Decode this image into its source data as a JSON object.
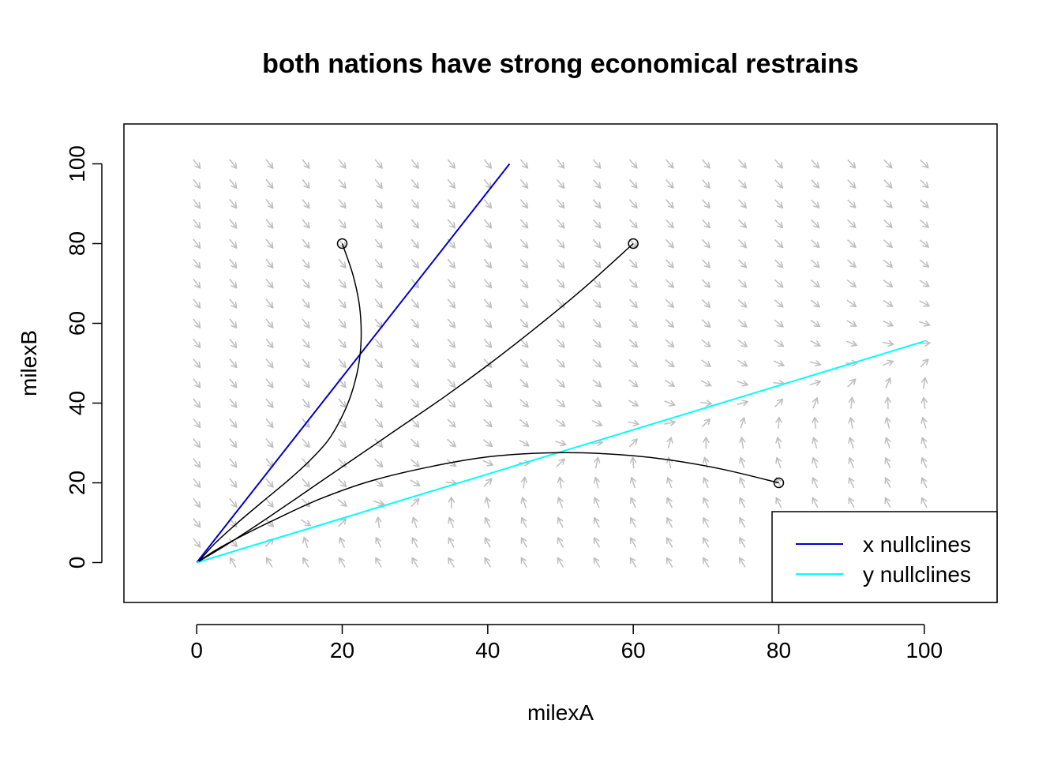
{
  "chart_data": {
    "type": "line",
    "title": "both nations have strong economical restrains",
    "xlabel": "milexA",
    "ylabel": "milexB",
    "xlim": [
      -10,
      110
    ],
    "ylim": [
      -10,
      110
    ],
    "x_ticks": [
      0,
      20,
      40,
      60,
      80,
      100
    ],
    "y_ticks": [
      0,
      20,
      40,
      60,
      80,
      100
    ],
    "grid": false,
    "legend_position": "bottom-right",
    "colors": {
      "x_nullcline": "#0000cd",
      "y_nullcline": "#00ffff",
      "trajectory": "#000000",
      "vector_field": "#bebebe"
    },
    "series": [
      {
        "name": "x nullclines",
        "x": [
          0,
          43
        ],
        "y": [
          0,
          100
        ]
      },
      {
        "name": "y nullclines",
        "x": [
          0,
          100
        ],
        "y": [
          0,
          55.5
        ]
      }
    ],
    "trajectories": [
      {
        "start": [
          20,
          80
        ],
        "x": [
          20,
          21.5,
          22.4,
          22.6,
          22.2,
          21.2,
          19.8,
          18,
          15.5,
          12.5,
          9,
          5.5,
          2.5,
          0.3
        ],
        "y": [
          80,
          72,
          64,
          56,
          49,
          42,
          36,
          30.5,
          25.5,
          20.5,
          15.2,
          9.8,
          4.8,
          0.3
        ]
      },
      {
        "start": [
          60,
          80
        ],
        "x": [
          60,
          53,
          46,
          40,
          34,
          28,
          22,
          16,
          10,
          5,
          0.3
        ],
        "y": [
          80,
          68.5,
          58,
          49.5,
          41.5,
          34,
          26.5,
          19,
          11.5,
          5.5,
          0.3
        ]
      },
      {
        "start": [
          80,
          20
        ],
        "x": [
          80,
          72,
          64,
          56,
          48,
          40,
          32,
          24,
          17,
          11,
          6,
          2.5,
          0.3
        ],
        "y": [
          20,
          23.5,
          26,
          27.3,
          27.5,
          26.5,
          24,
          20.5,
          16,
          11,
          6.5,
          3,
          0.3
        ]
      }
    ]
  }
}
